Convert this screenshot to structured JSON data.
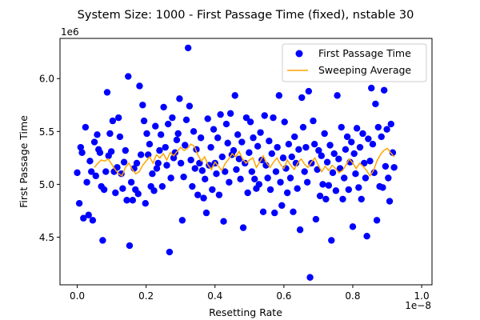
{
  "chart_data": {
    "type": "scatter",
    "title": "System Size: 1000 - First Passage Time (fixed), nstable 30",
    "xlabel": "Resetting Rate",
    "ylabel": "First Passage Time",
    "x_offset_label": "1e−8",
    "y_offset_label": "1e6",
    "xlim": [
      -0.05,
      1.03
    ],
    "ylim": [
      4.05,
      6.38
    ],
    "x_ticks": [
      0.0,
      0.2,
      0.4,
      0.6,
      0.8,
      1.0
    ],
    "x_tick_labels": [
      "0.0",
      "0.2",
      "0.4",
      "0.6",
      "0.8",
      "1.0"
    ],
    "y_ticks": [
      4.5,
      5.0,
      5.5,
      6.0
    ],
    "y_tick_labels": [
      "4.5",
      "5.0",
      "5.5",
      "6.0"
    ],
    "grid": false,
    "legend_position": "top-right",
    "series": [
      {
        "name": "First Passage Time",
        "kind": "scatter",
        "color": "#0000ff",
        "points": [
          [
            0.0,
            5.11
          ],
          [
            0.006,
            4.82
          ],
          [
            0.01,
            5.35
          ],
          [
            0.014,
            5.3
          ],
          [
            0.018,
            4.68
          ],
          [
            0.024,
            5.54
          ],
          [
            0.028,
            5.02
          ],
          [
            0.033,
            4.71
          ],
          [
            0.037,
            5.22
          ],
          [
            0.041,
            5.12
          ],
          [
            0.045,
            4.66
          ],
          [
            0.05,
            5.4
          ],
          [
            0.054,
            5.08
          ],
          [
            0.058,
            5.47
          ],
          [
            0.062,
            5.33
          ],
          [
            0.066,
            5.3
          ],
          [
            0.07,
            4.98
          ],
          [
            0.074,
            4.47
          ],
          [
            0.078,
            4.95
          ],
          [
            0.083,
            5.12
          ],
          [
            0.087,
            5.87
          ],
          [
            0.091,
            5.27
          ],
          [
            0.095,
            5.48
          ],
          [
            0.099,
            5.31
          ],
          [
            0.103,
            5.6
          ],
          [
            0.107,
            5.12
          ],
          [
            0.111,
            4.92
          ],
          [
            0.116,
            5.16
          ],
          [
            0.12,
            5.63
          ],
          [
            0.124,
            5.45
          ],
          [
            0.128,
            5.1
          ],
          [
            0.132,
            4.96
          ],
          [
            0.136,
            5.21
          ],
          [
            0.14,
            5.32
          ],
          [
            0.144,
            4.85
          ],
          [
            0.148,
            6.02
          ],
          [
            0.152,
            4.42
          ],
          [
            0.157,
            5.02
          ],
          [
            0.161,
            4.85
          ],
          [
            0.165,
            5.15
          ],
          [
            0.169,
            4.95
          ],
          [
            0.173,
            5.2
          ],
          [
            0.177,
            4.91
          ],
          [
            0.181,
            5.93
          ],
          [
            0.185,
            5.28
          ],
          [
            0.19,
            5.75
          ],
          [
            0.194,
            5.6
          ],
          [
            0.198,
            4.82
          ],
          [
            0.202,
            5.48
          ],
          [
            0.206,
            5.28
          ],
          [
            0.21,
            5.38
          ],
          [
            0.214,
            4.98
          ],
          [
            0.218,
            5.1
          ],
          [
            0.223,
            4.94
          ],
          [
            0.227,
            5.55
          ],
          [
            0.231,
            5.15
          ],
          [
            0.235,
            5.2
          ],
          [
            0.239,
            5.32
          ],
          [
            0.243,
            5.47
          ],
          [
            0.247,
            4.98
          ],
          [
            0.251,
            5.73
          ],
          [
            0.256,
            5.35
          ],
          [
            0.26,
            5.18
          ],
          [
            0.264,
            5.57
          ],
          [
            0.268,
            4.36
          ],
          [
            0.272,
            5.06
          ],
          [
            0.276,
            5.63
          ],
          [
            0.28,
            5.25
          ],
          [
            0.284,
            5.3
          ],
          [
            0.289,
            5.42
          ],
          [
            0.293,
            5.48
          ],
          [
            0.297,
            5.81
          ],
          [
            0.301,
            5.2
          ],
          [
            0.305,
            4.66
          ],
          [
            0.309,
            5.07
          ],
          [
            0.313,
            5.37
          ],
          [
            0.317,
            5.61
          ],
          [
            0.322,
            6.29
          ],
          [
            0.326,
            5.74
          ],
          [
            0.33,
            5.23
          ],
          [
            0.334,
            4.98
          ],
          [
            0.338,
            5.5
          ],
          [
            0.342,
            5.15
          ],
          [
            0.346,
            5.33
          ],
          [
            0.35,
            4.9
          ],
          [
            0.355,
            5.2
          ],
          [
            0.359,
            5.44
          ],
          [
            0.363,
            5.13
          ],
          [
            0.367,
            4.87
          ],
          [
            0.371,
            5.05
          ],
          [
            0.375,
            4.73
          ],
          [
            0.379,
            5.62
          ],
          [
            0.383,
            5.18
          ],
          [
            0.388,
            5.35
          ],
          [
            0.392,
            4.95
          ],
          [
            0.396,
            5.52
          ],
          [
            0.4,
            5.2
          ],
          [
            0.404,
            5.1
          ],
          [
            0.408,
            5.44
          ],
          [
            0.412,
            4.9
          ],
          [
            0.416,
            5.66
          ],
          [
            0.421,
            5.26
          ],
          [
            0.425,
            4.65
          ],
          [
            0.429,
            5.12
          ],
          [
            0.433,
            5.57
          ],
          [
            0.437,
            5.39
          ],
          [
            0.441,
            5.02
          ],
          [
            0.445,
            5.67
          ],
          [
            0.449,
            5.28
          ],
          [
            0.454,
            5.32
          ],
          [
            0.458,
            5.84
          ],
          [
            0.462,
            5.14
          ],
          [
            0.466,
            5.47
          ],
          [
            0.47,
            5.24
          ],
          [
            0.474,
            5.05
          ],
          [
            0.478,
            5.4
          ],
          [
            0.482,
            4.59
          ],
          [
            0.487,
            5.2
          ],
          [
            0.491,
            5.63
          ],
          [
            0.495,
            4.92
          ],
          [
            0.499,
            5.3
          ],
          [
            0.503,
            5.59
          ],
          [
            0.507,
            5.12
          ],
          [
            0.511,
            5.44
          ],
          [
            0.515,
            5.05
          ],
          [
            0.52,
            4.96
          ],
          [
            0.524,
            5.36
          ],
          [
            0.528,
            5.0
          ],
          [
            0.532,
            5.49
          ],
          [
            0.536,
            5.23
          ],
          [
            0.54,
            4.74
          ],
          [
            0.544,
            5.65
          ],
          [
            0.548,
            5.18
          ],
          [
            0.553,
            5.06
          ],
          [
            0.557,
            5.41
          ],
          [
            0.561,
            4.95
          ],
          [
            0.565,
            5.29
          ],
          [
            0.569,
            5.63
          ],
          [
            0.573,
            4.73
          ],
          [
            0.577,
            5.12
          ],
          [
            0.581,
            5.35
          ],
          [
            0.586,
            5.84
          ],
          [
            0.59,
            5.02
          ],
          [
            0.594,
            4.8
          ],
          [
            0.598,
            5.25
          ],
          [
            0.602,
            5.59
          ],
          [
            0.606,
            5.15
          ],
          [
            0.61,
            4.92
          ],
          [
            0.614,
            5.38
          ],
          [
            0.619,
            5.06
          ],
          [
            0.623,
            5.26
          ],
          [
            0.627,
            4.74
          ],
          [
            0.631,
            5.45
          ],
          [
            0.635,
            5.2
          ],
          [
            0.639,
            4.96
          ],
          [
            0.643,
            5.33
          ],
          [
            0.647,
            4.57
          ],
          [
            0.652,
            5.82
          ],
          [
            0.656,
            5.54
          ],
          [
            0.66,
            5.12
          ],
          [
            0.664,
            5.35
          ],
          [
            0.668,
            5.02
          ],
          [
            0.672,
            5.88
          ],
          [
            0.676,
            4.12
          ],
          [
            0.68,
            5.2
          ],
          [
            0.685,
            5.6
          ],
          [
            0.689,
            5.38
          ],
          [
            0.693,
            4.67
          ],
          [
            0.697,
            5.14
          ],
          [
            0.701,
            5.32
          ],
          [
            0.705,
            4.89
          ],
          [
            0.709,
            5.27
          ],
          [
            0.713,
            5.0
          ],
          [
            0.718,
            5.48
          ],
          [
            0.722,
            4.86
          ],
          [
            0.726,
            5.21
          ],
          [
            0.73,
            4.99
          ],
          [
            0.734,
            5.37
          ],
          [
            0.738,
            4.47
          ],
          [
            0.742,
            5.11
          ],
          [
            0.746,
            5.29
          ],
          [
            0.751,
            4.94
          ],
          [
            0.755,
            5.84
          ],
          [
            0.759,
            5.24
          ],
          [
            0.763,
            5.15
          ],
          [
            0.767,
            5.54
          ],
          [
            0.771,
            4.86
          ],
          [
            0.775,
            5.06
          ],
          [
            0.779,
            5.33
          ],
          [
            0.784,
            5.45
          ],
          [
            0.788,
            4.95
          ],
          [
            0.792,
            5.21
          ],
          [
            0.796,
            5.4
          ],
          [
            0.8,
            4.6
          ],
          [
            0.804,
            5.29
          ],
          [
            0.808,
            5.1
          ],
          [
            0.812,
            5.53
          ],
          [
            0.817,
            4.97
          ],
          [
            0.821,
            5.35
          ],
          [
            0.825,
            4.86
          ],
          [
            0.829,
            5.48
          ],
          [
            0.833,
            5.2
          ],
          [
            0.837,
            5.06
          ],
          [
            0.841,
            4.51
          ],
          [
            0.845,
            5.43
          ],
          [
            0.85,
            5.22
          ],
          [
            0.854,
            5.91
          ],
          [
            0.858,
            5.38
          ],
          [
            0.862,
            5.11
          ],
          [
            0.866,
            5.76
          ],
          [
            0.87,
            4.66
          ],
          [
            0.874,
            5.54
          ],
          [
            0.878,
            4.98
          ],
          [
            0.883,
            5.45
          ],
          [
            0.887,
            4.97
          ],
          [
            0.891,
            5.89
          ],
          [
            0.895,
            5.17
          ],
          [
            0.899,
            5.52
          ],
          [
            0.903,
            5.06
          ],
          [
            0.907,
            4.84
          ],
          [
            0.911,
            5.57
          ],
          [
            0.916,
            5.3
          ],
          [
            0.92,
            5.16
          ]
        ]
      },
      {
        "name": "Sweeping Average",
        "kind": "line",
        "color": "#ffa500",
        "points": [
          [
            0.05,
            5.16
          ],
          [
            0.06,
            5.2
          ],
          [
            0.07,
            5.23
          ],
          [
            0.08,
            5.22
          ],
          [
            0.09,
            5.24
          ],
          [
            0.1,
            5.19
          ],
          [
            0.11,
            5.14
          ],
          [
            0.12,
            5.1
          ],
          [
            0.13,
            5.08
          ],
          [
            0.14,
            5.16
          ],
          [
            0.15,
            5.2
          ],
          [
            0.16,
            5.14
          ],
          [
            0.17,
            5.1
          ],
          [
            0.18,
            5.12
          ],
          [
            0.19,
            5.18
          ],
          [
            0.2,
            5.22
          ],
          [
            0.21,
            5.26
          ],
          [
            0.22,
            5.2
          ],
          [
            0.23,
            5.28
          ],
          [
            0.24,
            5.25
          ],
          [
            0.25,
            5.29
          ],
          [
            0.26,
            5.23
          ],
          [
            0.27,
            5.3
          ],
          [
            0.28,
            5.27
          ],
          [
            0.29,
            5.31
          ],
          [
            0.3,
            5.35
          ],
          [
            0.31,
            5.32
          ],
          [
            0.32,
            5.34
          ],
          [
            0.33,
            5.38
          ],
          [
            0.34,
            5.36
          ],
          [
            0.35,
            5.28
          ],
          [
            0.36,
            5.22
          ],
          [
            0.37,
            5.26
          ],
          [
            0.38,
            5.18
          ],
          [
            0.39,
            5.14
          ],
          [
            0.4,
            5.21
          ],
          [
            0.41,
            5.17
          ],
          [
            0.42,
            5.13
          ],
          [
            0.43,
            5.2
          ],
          [
            0.44,
            5.24
          ],
          [
            0.45,
            5.29
          ],
          [
            0.46,
            5.26
          ],
          [
            0.47,
            5.31
          ],
          [
            0.48,
            5.24
          ],
          [
            0.49,
            5.2
          ],
          [
            0.5,
            5.23
          ],
          [
            0.51,
            5.25
          ],
          [
            0.52,
            5.16
          ],
          [
            0.53,
            5.21
          ],
          [
            0.54,
            5.27
          ],
          [
            0.55,
            5.2
          ],
          [
            0.56,
            5.16
          ],
          [
            0.57,
            5.21
          ],
          [
            0.58,
            5.25
          ],
          [
            0.59,
            5.19
          ],
          [
            0.6,
            5.15
          ],
          [
            0.61,
            5.23
          ],
          [
            0.62,
            5.18
          ],
          [
            0.63,
            5.14
          ],
          [
            0.64,
            5.2
          ],
          [
            0.65,
            5.24
          ],
          [
            0.66,
            5.19
          ],
          [
            0.67,
            5.16
          ],
          [
            0.68,
            5.21
          ],
          [
            0.69,
            5.25
          ],
          [
            0.7,
            5.18
          ],
          [
            0.71,
            5.12
          ],
          [
            0.72,
            5.17
          ],
          [
            0.73,
            5.13
          ],
          [
            0.74,
            5.18
          ],
          [
            0.75,
            5.15
          ],
          [
            0.76,
            5.11
          ],
          [
            0.77,
            5.13
          ],
          [
            0.78,
            5.18
          ],
          [
            0.79,
            5.24
          ],
          [
            0.8,
            5.2
          ],
          [
            0.81,
            5.15
          ],
          [
            0.82,
            5.2
          ],
          [
            0.83,
            5.17
          ],
          [
            0.84,
            5.13
          ],
          [
            0.85,
            5.08
          ],
          [
            0.86,
            5.13
          ],
          [
            0.87,
            5.22
          ],
          [
            0.88,
            5.28
          ],
          [
            0.89,
            5.32
          ],
          [
            0.9,
            5.34
          ],
          [
            0.91,
            5.3
          ],
          [
            0.92,
            5.26
          ]
        ]
      }
    ]
  }
}
